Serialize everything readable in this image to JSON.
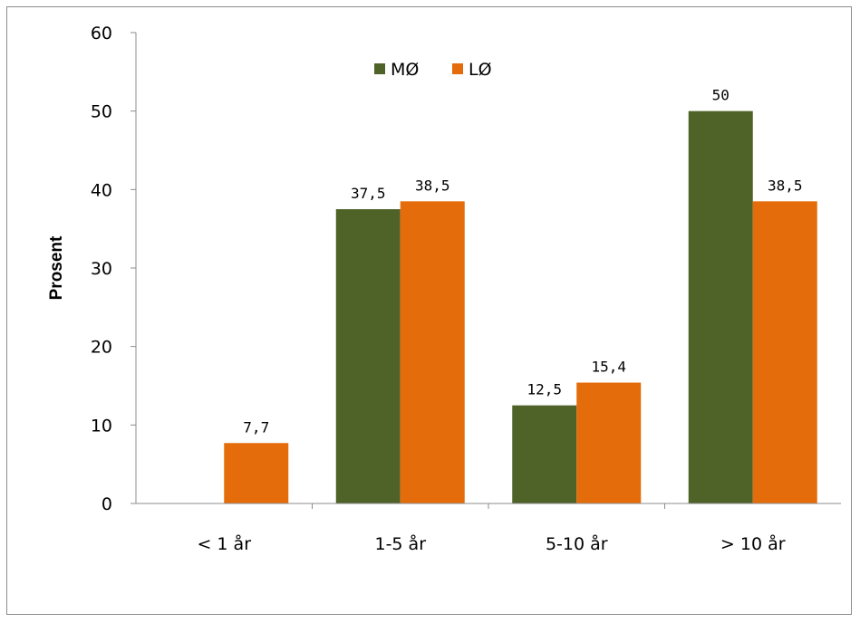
{
  "chart_data": {
    "type": "bar",
    "categories": [
      "< 1 år",
      "1-5 år",
      "5-10 år",
      "> 10 år"
    ],
    "series": [
      {
        "name": "MØ",
        "color": "#4f6228",
        "values": [
          null,
          37.5,
          12.5,
          50
        ],
        "labels": [
          "",
          "37,5",
          "12,5",
          "50"
        ]
      },
      {
        "name": "LØ",
        "color": "#e46c0a",
        "values": [
          7.7,
          38.5,
          15.4,
          38.5
        ],
        "labels": [
          "7,7",
          "38,5",
          "15,4",
          "38,5"
        ]
      }
    ],
    "ylabel": "Prosent",
    "ylim": [
      0,
      60
    ],
    "yticks": [
      "0",
      "10",
      "20",
      "30",
      "40",
      "50",
      "60"
    ],
    "grid": false,
    "legend_position": "top-center"
  }
}
